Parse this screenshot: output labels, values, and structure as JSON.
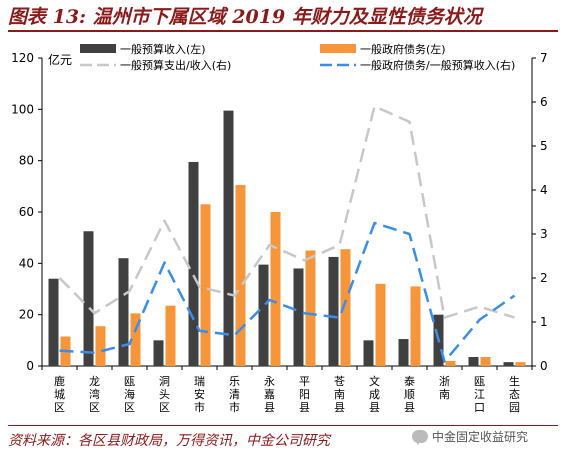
{
  "header": {
    "title": "图表 13: 温州市下属区域 2019 年财力及显性债务状况"
  },
  "footer": {
    "source": "资料来源：各区县财政局，万得资讯，中金公司研究",
    "watermark": "中金固定收益研究",
    "watermark_icon": "wechat-icon"
  },
  "colors": {
    "title": "#8b1a1a",
    "bar_revenue": "#404040",
    "bar_debt": "#f7953a",
    "line_expense_ratio": "#c8c8c8",
    "line_debt_ratio": "#3b8ee8"
  },
  "chart_data": {
    "type": "bar",
    "title": "",
    "left_axis_unit": "亿元",
    "ylim_left": [
      0,
      120
    ],
    "yticks_left": [
      0,
      20,
      40,
      60,
      80,
      100,
      120
    ],
    "ylim_right": [
      0,
      7
    ],
    "yticks_right": [
      0,
      1,
      2,
      3,
      4,
      5,
      6,
      7
    ],
    "grid": false,
    "legend_position": "top",
    "categories": [
      "鹿城区",
      "龙湾区",
      "瓯海区",
      "洞头区",
      "瑞安市",
      "乐清市",
      "永嘉县",
      "平阳县",
      "苍南县",
      "文成县",
      "泰顺县",
      "浙南",
      "瓯江口",
      "生态园"
    ],
    "series": [
      {
        "name": "一般预算收入(左)",
        "kind": "bar",
        "axis": "left",
        "values": [
          34,
          52.5,
          42,
          10,
          79.5,
          99.5,
          39.5,
          38,
          42.5,
          10,
          10.5,
          20,
          3.5,
          1.5
        ]
      },
      {
        "name": "一般政府债务(左)",
        "kind": "bar",
        "axis": "left",
        "values": [
          11.5,
          15.5,
          20.5,
          23.5,
          63,
          70.5,
          60,
          45,
          45.5,
          32,
          31,
          2,
          3.5,
          1.5
        ]
      },
      {
        "name": "一般预算支出/收入(右)",
        "kind": "line",
        "axis": "right",
        "values": [
          2.0,
          1.2,
          1.7,
          3.3,
          1.8,
          1.6,
          2.75,
          2.4,
          2.75,
          5.9,
          5.55,
          1.1,
          1.35,
          1.1
        ]
      },
      {
        "name": "一般政府债务/一般预算收入(右)",
        "kind": "line",
        "axis": "right",
        "values": [
          0.35,
          0.3,
          0.5,
          2.35,
          0.8,
          0.7,
          1.5,
          1.2,
          1.1,
          3.25,
          3.0,
          0.1,
          1.05,
          1.6
        ]
      }
    ]
  }
}
